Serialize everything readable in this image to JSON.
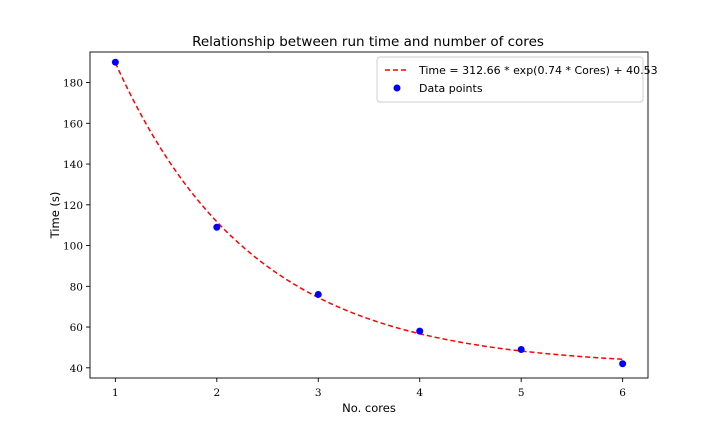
{
  "chart_data": {
    "type": "scatter",
    "title": "Relationship between run time and number of cores",
    "xlabel": "No. cores",
    "ylabel": "Time (s)",
    "xlim": [
      0.75,
      6.25
    ],
    "ylim": [
      35,
      195
    ],
    "xticks": [
      1,
      2,
      3,
      4,
      5,
      6
    ],
    "yticks": [
      40,
      60,
      80,
      100,
      120,
      140,
      160,
      180
    ],
    "grid": false,
    "legend_position": "top-right",
    "series": [
      {
        "name": "Data points",
        "kind": "scatter",
        "color": "#0000ff",
        "x": [
          1,
          2,
          3,
          4,
          5,
          6
        ],
        "y": [
          190,
          109,
          76,
          58,
          49,
          42
        ]
      },
      {
        "name": "Time = 312.66 * exp(0.74 * Cores) + 40.53",
        "kind": "line",
        "style": "dashed",
        "color": "#ff0000",
        "x_range": [
          1,
          6
        ],
        "fit": {
          "a": 312.66,
          "b": 0.74,
          "c": 40.53
        }
      }
    ]
  }
}
